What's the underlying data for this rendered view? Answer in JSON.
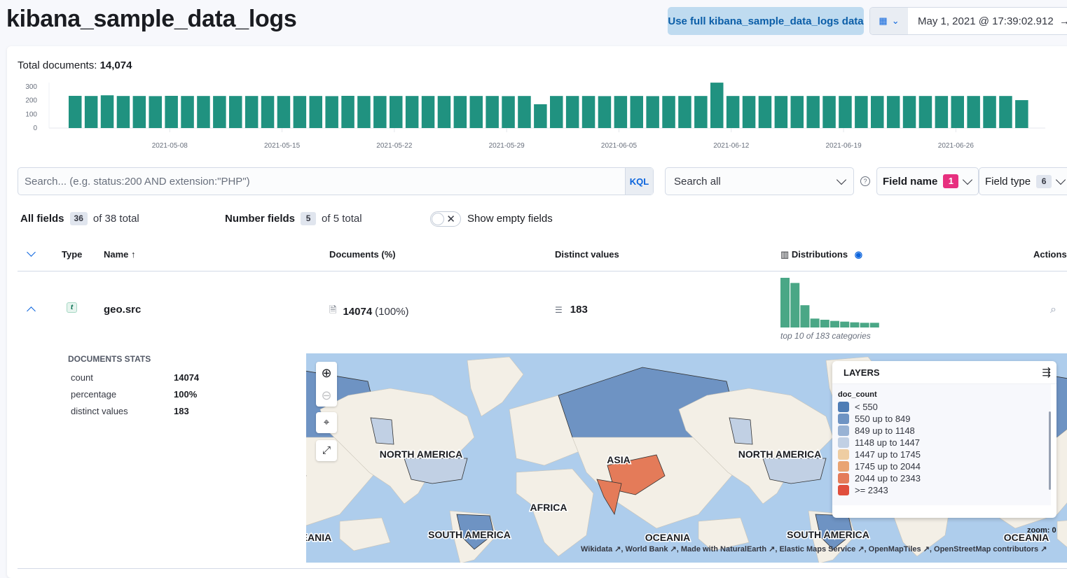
{
  "header": {
    "title": "kibana_sample_data_logs",
    "full_data_button": "Use full kibana_sample_data_logs data",
    "date_start": "May 1, 2021 @ 17:39:02.912",
    "date_arrow": "→"
  },
  "overview": {
    "total_label": "Total documents:",
    "total_value": "14,074"
  },
  "chart_data": {
    "type": "bar",
    "title": "",
    "xlabel": "",
    "ylabel": "",
    "ylim": [
      0,
      300
    ],
    "yticks": [
      "0",
      "100",
      "200",
      "300"
    ],
    "xticks": [
      "2021-05-08",
      "2021-05-15",
      "2021-05-22",
      "2021-05-29",
      "2021-06-05",
      "2021-06-12",
      "2021-06-19",
      "2021-06-26"
    ],
    "start_date": "2021-05-02",
    "values": [
      234,
      233,
      238,
      233,
      233,
      232,
      234,
      233,
      233,
      233,
      233,
      233,
      233,
      233,
      233,
      233,
      232,
      234,
      233,
      233,
      233,
      233,
      233,
      233,
      233,
      233,
      233,
      232,
      233,
      173,
      233,
      233,
      233,
      232,
      233,
      233,
      232,
      233,
      233,
      233,
      330,
      233,
      233,
      233,
      233,
      233,
      233,
      233,
      233,
      233,
      233,
      233,
      233,
      233,
      233,
      233,
      233,
      233,
      233,
      203
    ],
    "color": "#209280",
    "grid": false
  },
  "search": {
    "placeholder": "Search... (e.g. status:200 AND extension:\"PHP\")",
    "value": "",
    "kql_label": "KQL",
    "search_all": "Search all",
    "help": "?",
    "field_name_label": "Field name",
    "field_name_count": "1",
    "field_type_label": "Field type",
    "field_type_count": "6"
  },
  "stats": {
    "all_fields_label": "All fields",
    "all_fields_count": "36",
    "all_fields_total": "of 38 total",
    "number_fields_label": "Number fields",
    "number_fields_count": "5",
    "number_fields_total": "of 5 total",
    "show_empty_label": "Show empty fields",
    "show_empty_on": false
  },
  "table": {
    "headers": {
      "type": "Type",
      "name": "Name",
      "documents": "Documents (%)",
      "distinct": "Distinct values",
      "distributions": "Distributions",
      "actions": "Actions"
    },
    "row": {
      "type_glyph": "t",
      "name": "geo.src",
      "doc_count": "14074",
      "doc_pct": "(100%)",
      "distinct": "183",
      "distribution_caption": "top 10 of 183 categories",
      "distribution_values": [
        212,
        190,
        95,
        38,
        33,
        28,
        25,
        22,
        20,
        20
      ]
    },
    "expanded": {
      "stats_title": "DOCUMENTS STATS",
      "rows": [
        {
          "label": "count",
          "value": "14074"
        },
        {
          "label": "percentage",
          "value": "100%"
        },
        {
          "label": "distinct values",
          "value": "183"
        }
      ]
    }
  },
  "map": {
    "labels": [
      "NORTH AMERICA",
      "AFRICA",
      "ASIA",
      "SOUTH AMERICA",
      "OCEANIA"
    ],
    "layers_title": "LAYERS",
    "legend_field": "doc_count",
    "legend": [
      {
        "label": "< 550",
        "color": "#4f7db5"
      },
      {
        "label": "550 up to 849",
        "color": "#6e93c3"
      },
      {
        "label": "849 up to 1148",
        "color": "#98b2d4"
      },
      {
        "label": "1148 up to 1447",
        "color": "#c1d0e4"
      },
      {
        "label": "1447 up to 1745",
        "color": "#eecda2"
      },
      {
        "label": "1745 up to 2044",
        "color": "#e9a473"
      },
      {
        "label": "2044 up to 2343",
        "color": "#e47b59"
      },
      {
        "label": ">= 2343",
        "color": "#e04f3d"
      }
    ],
    "zoom_label": "zoom: 0",
    "attribution": "Wikidata ↗, World Bank ↗, Made with NaturalEarth ↗, Elastic Maps Service ↗, OpenMapTiles ↗, OpenStreetMap contributors ↗"
  }
}
